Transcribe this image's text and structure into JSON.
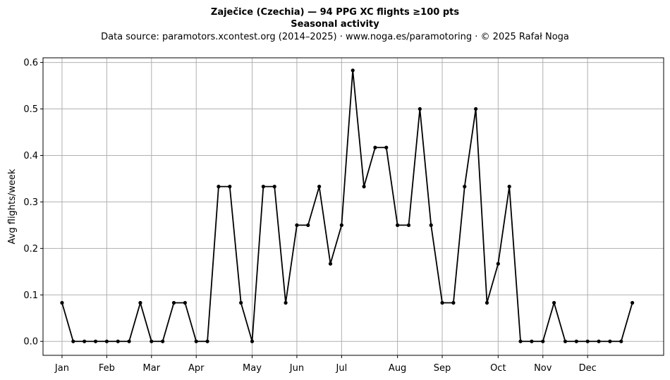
{
  "chart_data": {
    "type": "line",
    "title": "Zaječice (Czechia)  —  94 PPG XC flights ≥100 pts",
    "subtitle": "Seasonal activity",
    "source": "Data source: paramotors.xcontest.org (2014–2025)  ·  www.noga.es/paramotoring  ·  © 2025 Rafał Noga",
    "xlabel": "",
    "ylabel": "Avg flights/week",
    "ylim": [
      -0.03,
      0.61
    ],
    "xlim": [
      -1.7,
      53.8
    ],
    "yticks": [
      0.0,
      0.1,
      0.2,
      0.3,
      0.4,
      0.5,
      0.6
    ],
    "ytick_labels": [
      "0.0",
      "0.1",
      "0.2",
      "0.3",
      "0.4",
      "0.5",
      "0.6"
    ],
    "xticks": [
      0,
      4,
      8,
      12,
      17,
      21,
      25,
      30,
      34,
      39,
      43,
      47
    ],
    "xtick_labels": [
      "Jan",
      "Feb",
      "Mar",
      "Apr",
      "May",
      "Jun",
      "Jul",
      "Aug",
      "Sep",
      "Oct",
      "Nov",
      "Dec"
    ],
    "grid": true,
    "x": [
      0,
      1,
      2,
      3,
      4,
      5,
      6,
      7,
      8,
      9,
      10,
      11,
      12,
      13,
      14,
      15,
      16,
      17,
      18,
      19,
      20,
      21,
      22,
      23,
      24,
      25,
      26,
      27,
      28,
      29,
      30,
      31,
      32,
      33,
      34,
      35,
      36,
      37,
      38,
      39,
      40,
      41,
      42,
      43,
      44,
      45,
      46,
      47,
      48,
      49,
      50,
      51
    ],
    "values": [
      0.083,
      0,
      0,
      0,
      0,
      0,
      0,
      0.083,
      0,
      0,
      0.083,
      0.083,
      0,
      0,
      0.333,
      0.333,
      0.083,
      0,
      0.333,
      0.333,
      0.083,
      0.25,
      0.25,
      0.333,
      0.167,
      0.25,
      0.583,
      0.333,
      0.417,
      0.417,
      0.25,
      0.25,
      0.5,
      0.25,
      0.083,
      0.083,
      0.333,
      0.5,
      0.083,
      0.167,
      0.333,
      0,
      0,
      0,
      0.083,
      0,
      0,
      0,
      0,
      0,
      0,
      0.083
    ],
    "color": "#000000"
  }
}
